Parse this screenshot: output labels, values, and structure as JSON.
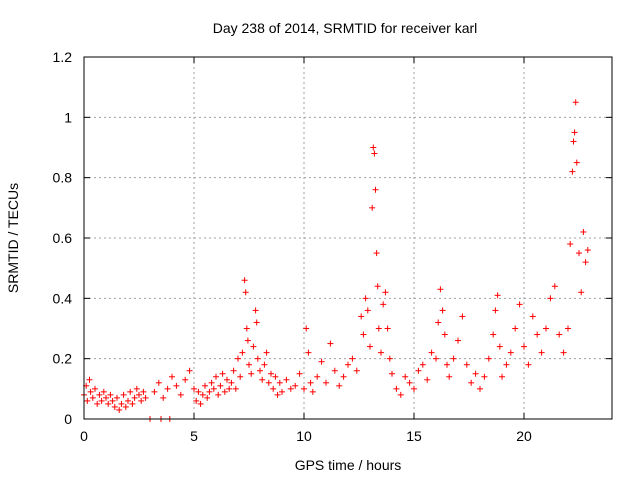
{
  "chart_data": {
    "type": "scatter",
    "title": "Day 238 of 2014, SRMTID for receiver karl",
    "xlabel": "GPS time / hours",
    "ylabel": "SRMTID / TECUs",
    "xlim": [
      0,
      24
    ],
    "ylim": [
      0,
      1.2
    ],
    "xticks": [
      0,
      5,
      10,
      15,
      20
    ],
    "xtick_labels": [
      "0",
      "5",
      "10",
      "15",
      "20"
    ],
    "yticks": [
      0,
      0.2,
      0.4,
      0.6,
      0.8,
      1,
      1.2
    ],
    "ytick_labels": [
      "0",
      "0.2",
      "0.4",
      "0.6",
      "0.8",
      "1",
      "1.2"
    ],
    "grid": true,
    "marker": "+",
    "color": "#ff0000",
    "series": [
      {
        "name": "SRMTID",
        "points": [
          [
            0.0,
            0.08
          ],
          [
            0.1,
            0.11
          ],
          [
            0.15,
            0.06
          ],
          [
            0.25,
            0.13
          ],
          [
            0.3,
            0.09
          ],
          [
            0.4,
            0.07
          ],
          [
            0.5,
            0.1
          ],
          [
            0.6,
            0.05
          ],
          [
            0.7,
            0.08
          ],
          [
            0.8,
            0.06
          ],
          [
            0.9,
            0.09
          ],
          [
            1.0,
            0.07
          ],
          [
            1.1,
            0.05
          ],
          [
            1.2,
            0.08
          ],
          [
            1.3,
            0.06
          ],
          [
            1.4,
            0.04
          ],
          [
            1.5,
            0.07
          ],
          [
            1.6,
            0.03
          ],
          [
            1.7,
            0.05
          ],
          [
            1.8,
            0.08
          ],
          [
            1.9,
            0.04
          ],
          [
            2.0,
            0.06
          ],
          [
            2.1,
            0.09
          ],
          [
            2.2,
            0.05
          ],
          [
            2.3,
            0.07
          ],
          [
            2.4,
            0.1
          ],
          [
            2.5,
            0.08
          ],
          [
            2.6,
            0.06
          ],
          [
            2.7,
            0.09
          ],
          [
            2.8,
            0.07
          ],
          [
            3.0,
            0.0
          ],
          [
            3.5,
            0.0
          ],
          [
            3.9,
            0.0
          ],
          [
            3.2,
            0.09
          ],
          [
            3.4,
            0.12
          ],
          [
            3.6,
            0.07
          ],
          [
            3.8,
            0.1
          ],
          [
            4.0,
            0.14
          ],
          [
            4.2,
            0.11
          ],
          [
            4.4,
            0.08
          ],
          [
            4.6,
            0.13
          ],
          [
            4.8,
            0.16
          ],
          [
            5.0,
            0.1
          ],
          [
            5.1,
            0.06
          ],
          [
            5.2,
            0.09
          ],
          [
            5.3,
            0.05
          ],
          [
            5.4,
            0.08
          ],
          [
            5.5,
            0.11
          ],
          [
            5.6,
            0.07
          ],
          [
            5.7,
            0.09
          ],
          [
            5.8,
            0.12
          ],
          [
            5.9,
            0.1
          ],
          [
            6.0,
            0.14
          ],
          [
            6.1,
            0.08
          ],
          [
            6.2,
            0.11
          ],
          [
            6.3,
            0.15
          ],
          [
            6.4,
            0.09
          ],
          [
            6.5,
            0.13
          ],
          [
            6.6,
            0.1
          ],
          [
            6.7,
            0.12
          ],
          [
            6.8,
            0.16
          ],
          [
            6.9,
            0.1
          ],
          [
            7.0,
            0.2
          ],
          [
            7.1,
            0.14
          ],
          [
            7.2,
            0.22
          ],
          [
            7.3,
            0.46
          ],
          [
            7.35,
            0.42
          ],
          [
            7.4,
            0.3
          ],
          [
            7.45,
            0.26
          ],
          [
            7.5,
            0.18
          ],
          [
            7.6,
            0.15
          ],
          [
            7.7,
            0.24
          ],
          [
            7.8,
            0.36
          ],
          [
            7.85,
            0.32
          ],
          [
            7.9,
            0.2
          ],
          [
            8.0,
            0.16
          ],
          [
            8.1,
            0.13
          ],
          [
            8.2,
            0.18
          ],
          [
            8.3,
            0.22
          ],
          [
            8.4,
            0.12
          ],
          [
            8.5,
            0.15
          ],
          [
            8.6,
            0.1
          ],
          [
            8.7,
            0.14
          ],
          [
            8.8,
            0.08
          ],
          [
            8.9,
            0.12
          ],
          [
            9.0,
            0.09
          ],
          [
            9.2,
            0.13
          ],
          [
            9.4,
            0.1
          ],
          [
            9.6,
            0.11
          ],
          [
            9.8,
            0.15
          ],
          [
            10.0,
            0.1
          ],
          [
            10.1,
            0.3
          ],
          [
            10.2,
            0.22
          ],
          [
            10.3,
            0.12
          ],
          [
            10.4,
            0.09
          ],
          [
            10.6,
            0.14
          ],
          [
            10.8,
            0.19
          ],
          [
            11.0,
            0.12
          ],
          [
            11.2,
            0.25
          ],
          [
            11.4,
            0.16
          ],
          [
            11.6,
            0.11
          ],
          [
            11.8,
            0.14
          ],
          [
            12.0,
            0.18
          ],
          [
            12.2,
            0.2
          ],
          [
            12.4,
            0.16
          ],
          [
            12.6,
            0.34
          ],
          [
            12.7,
            0.28
          ],
          [
            12.8,
            0.4
          ],
          [
            12.9,
            0.36
          ],
          [
            13.0,
            0.24
          ],
          [
            13.1,
            0.7
          ],
          [
            13.15,
            0.9
          ],
          [
            13.2,
            0.88
          ],
          [
            13.25,
            0.76
          ],
          [
            13.3,
            0.55
          ],
          [
            13.35,
            0.44
          ],
          [
            13.4,
            0.3
          ],
          [
            13.5,
            0.22
          ],
          [
            13.6,
            0.38
          ],
          [
            13.7,
            0.42
          ],
          [
            13.8,
            0.3
          ],
          [
            13.9,
            0.2
          ],
          [
            14.0,
            0.15
          ],
          [
            14.2,
            0.1
          ],
          [
            14.4,
            0.08
          ],
          [
            14.6,
            0.14
          ],
          [
            14.8,
            0.12
          ],
          [
            15.0,
            0.1
          ],
          [
            15.2,
            0.16
          ],
          [
            15.4,
            0.18
          ],
          [
            15.6,
            0.13
          ],
          [
            15.8,
            0.22
          ],
          [
            16.0,
            0.2
          ],
          [
            16.1,
            0.32
          ],
          [
            16.2,
            0.43
          ],
          [
            16.3,
            0.36
          ],
          [
            16.4,
            0.28
          ],
          [
            16.5,
            0.18
          ],
          [
            16.6,
            0.14
          ],
          [
            16.8,
            0.2
          ],
          [
            17.0,
            0.26
          ],
          [
            17.2,
            0.34
          ],
          [
            17.4,
            0.18
          ],
          [
            17.6,
            0.12
          ],
          [
            17.8,
            0.15
          ],
          [
            18.0,
            0.1
          ],
          [
            18.2,
            0.14
          ],
          [
            18.4,
            0.2
          ],
          [
            18.6,
            0.28
          ],
          [
            18.7,
            0.36
          ],
          [
            18.8,
            0.41
          ],
          [
            18.9,
            0.24
          ],
          [
            19.0,
            0.14
          ],
          [
            19.2,
            0.18
          ],
          [
            19.4,
            0.22
          ],
          [
            19.6,
            0.3
          ],
          [
            19.8,
            0.38
          ],
          [
            20.0,
            0.24
          ],
          [
            20.2,
            0.18
          ],
          [
            20.4,
            0.34
          ],
          [
            20.6,
            0.28
          ],
          [
            20.8,
            0.22
          ],
          [
            21.0,
            0.3
          ],
          [
            21.2,
            0.4
          ],
          [
            21.4,
            0.44
          ],
          [
            21.6,
            0.28
          ],
          [
            21.8,
            0.22
          ],
          [
            22.0,
            0.3
          ],
          [
            22.1,
            0.58
          ],
          [
            22.2,
            0.82
          ],
          [
            22.25,
            0.92
          ],
          [
            22.3,
            0.95
          ],
          [
            22.35,
            1.05
          ],
          [
            22.4,
            0.85
          ],
          [
            22.5,
            0.55
          ],
          [
            22.6,
            0.42
          ],
          [
            22.7,
            0.62
          ],
          [
            22.8,
            0.52
          ],
          [
            22.9,
            0.56
          ]
        ]
      }
    ]
  }
}
